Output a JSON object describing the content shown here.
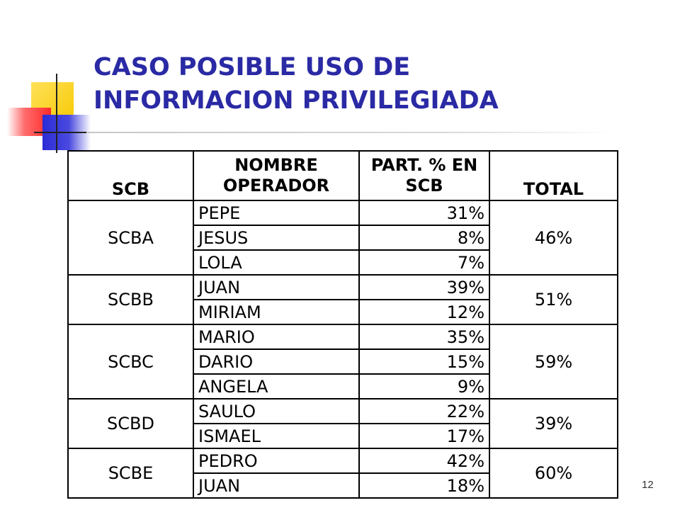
{
  "title": {
    "line1": "CASO POSIBLE USO DE",
    "line2": "INFORMACION PRIVILEGIADA"
  },
  "table": {
    "headers": {
      "scb": "SCB",
      "name_line1": "NOMBRE",
      "name_line2": "OPERADOR",
      "part_line1": "PART. % EN",
      "part_line2": "SCB",
      "total": "TOTAL"
    },
    "groups": [
      {
        "scb": "SCBA",
        "total": "46%",
        "rows": [
          {
            "name": "PEPE",
            "part": "31%"
          },
          {
            "name": "JESUS",
            "part": "8%"
          },
          {
            "name": "LOLA",
            "part": "7%"
          }
        ]
      },
      {
        "scb": "SCBB",
        "total": "51%",
        "rows": [
          {
            "name": "JUAN",
            "part": "39%"
          },
          {
            "name": "MIRIAM",
            "part": "12%"
          }
        ]
      },
      {
        "scb": "SCBC",
        "total": "59%",
        "rows": [
          {
            "name": "MARIO",
            "part": "35%"
          },
          {
            "name": "DARIO",
            "part": "15%"
          },
          {
            "name": "ANGELA",
            "part": "9%"
          }
        ]
      },
      {
        "scb": "SCBD",
        "total": "39%",
        "rows": [
          {
            "name": "SAULO",
            "part": "22%"
          },
          {
            "name": "ISMAEL",
            "part": "17%"
          }
        ]
      },
      {
        "scb": "SCBE",
        "total": "60%",
        "rows": [
          {
            "name": "PEDRO",
            "part": "42%"
          },
          {
            "name": "JUAN",
            "part": "18%"
          }
        ]
      }
    ]
  },
  "slide_number": "12",
  "colors": {
    "title": "#2a2aa5",
    "logo_yellow": "#f6c800",
    "logo_red": "#ff2a2a",
    "logo_blue": "#2b2bd6"
  }
}
